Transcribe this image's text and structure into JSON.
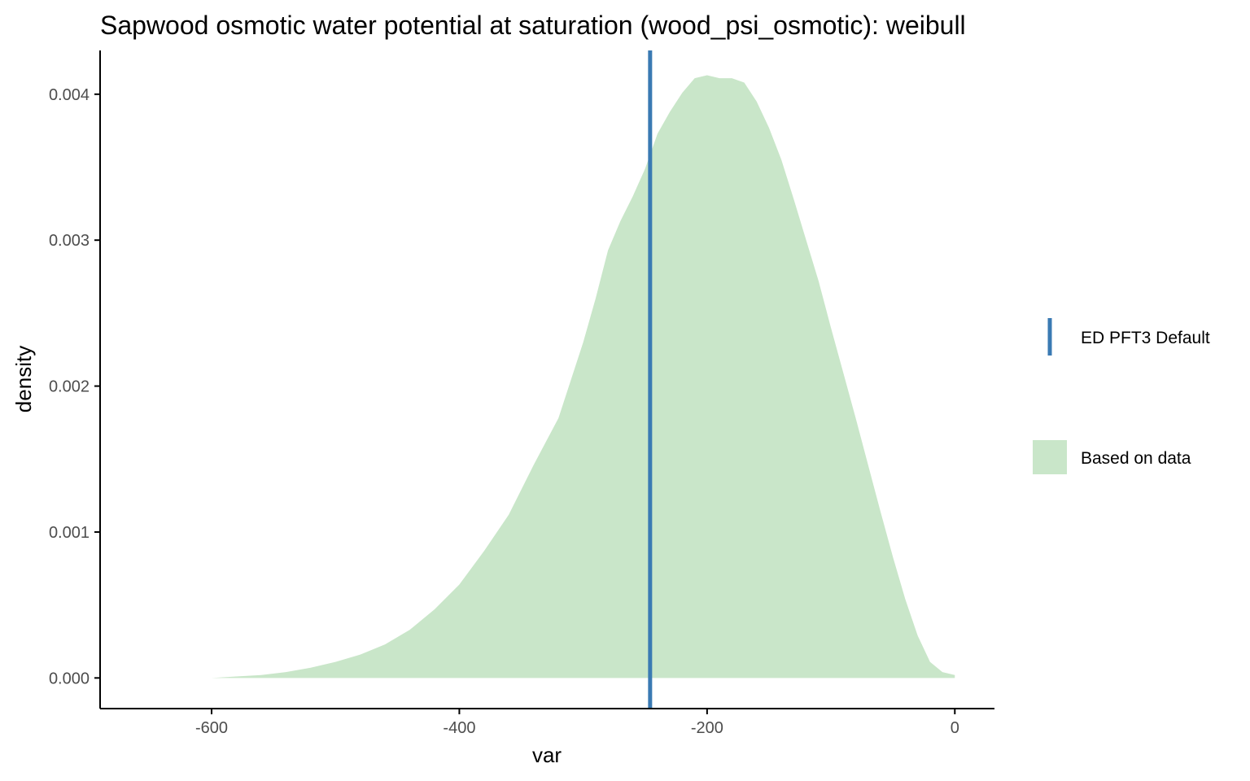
{
  "chart_data": {
    "type": "area",
    "title": "Sapwood osmotic water potential at saturation (wood_psi_osmotic): weibull",
    "xlabel": "var",
    "ylabel": "density",
    "xlim": [
      -690,
      32
    ],
    "ylim": [
      -0.00021,
      0.0043
    ],
    "x_ticks": [
      -600,
      -400,
      -200,
      0
    ],
    "x_tick_labels": [
      "-600",
      "-400",
      "-200",
      "0"
    ],
    "y_ticks": [
      0,
      0.001,
      0.002,
      0.003,
      0.004
    ],
    "y_tick_labels": [
      "0.000",
      "0.001",
      "0.002",
      "0.003",
      "0.004"
    ],
    "grid": false,
    "legend_position": "right",
    "colors": {
      "density_fill": "#c9e6c9",
      "default_line": "#3a7ab3"
    },
    "series": [
      {
        "name": "Based on data",
        "kind": "density",
        "x": [
          -600,
          -580,
          -560,
          -540,
          -520,
          -500,
          -480,
          -460,
          -440,
          -420,
          -400,
          -380,
          -360,
          -340,
          -320,
          -300,
          -290,
          -280,
          -270,
          -260,
          -250,
          -240,
          -230,
          -220,
          -210,
          -200,
          -190,
          -180,
          -170,
          -160,
          -150,
          -140,
          -130,
          -120,
          -110,
          -100,
          -90,
          -80,
          -70,
          -60,
          -50,
          -40,
          -30,
          -20,
          -10,
          0
        ],
        "y": [
          0.0,
          1e-05,
          2e-05,
          4e-05,
          7e-05,
          0.00011,
          0.00016,
          0.00023,
          0.00033,
          0.00047,
          0.00064,
          0.00087,
          0.00112,
          0.00146,
          0.00178,
          0.0023,
          0.0026,
          0.00293,
          0.00313,
          0.0033,
          0.00349,
          0.00373,
          0.00388,
          0.00401,
          0.00411,
          0.00413,
          0.00411,
          0.00411,
          0.00408,
          0.00395,
          0.00377,
          0.00355,
          0.00328,
          0.003,
          0.00272,
          0.0024,
          0.00209,
          0.00178,
          0.00146,
          0.00114,
          0.00083,
          0.00054,
          0.00029,
          0.00011,
          4e-05,
          2e-05
        ]
      }
    ],
    "vlines": [
      {
        "name": "ED PFT3 Default",
        "x": -246
      }
    ]
  }
}
